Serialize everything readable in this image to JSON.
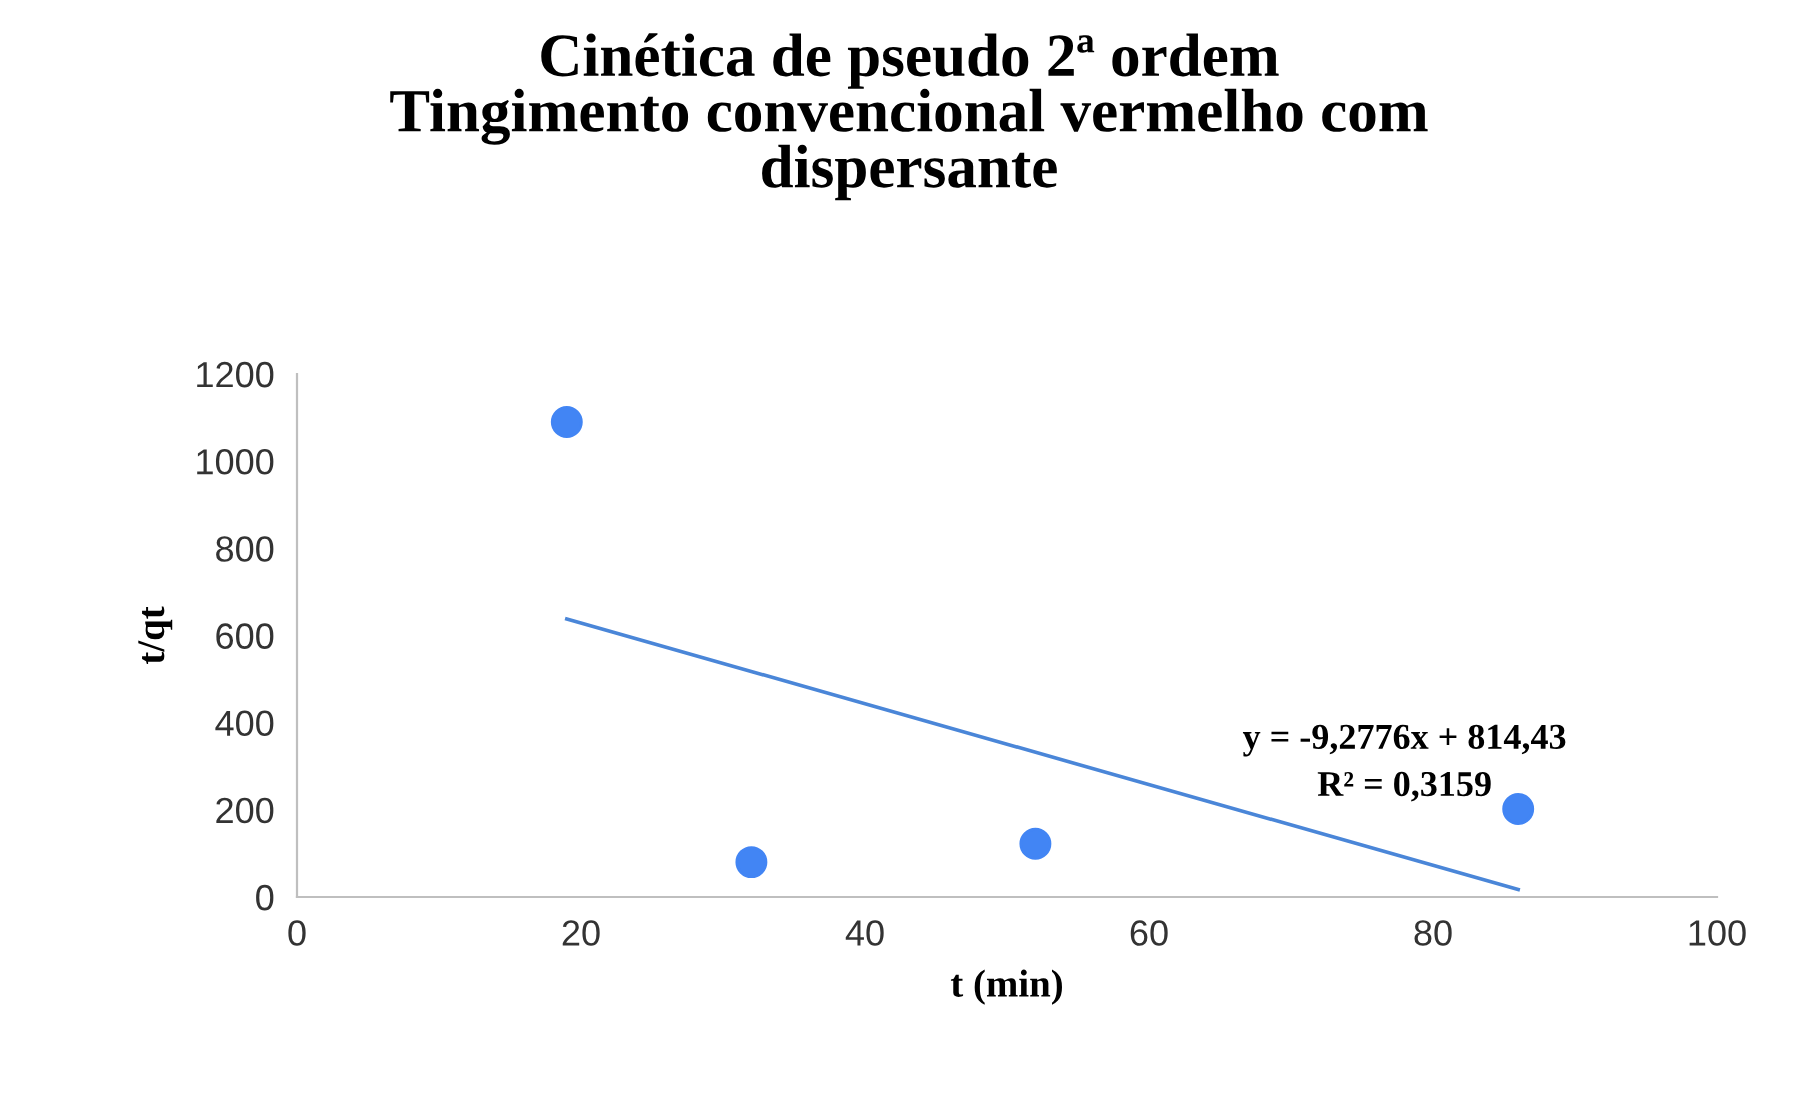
{
  "chart_data": {
    "type": "scatter",
    "title": "Cinética de pseudo 2ª ordem\nTingimento convencional vermelho com\ndispersante",
    "xlabel": "t (min)",
    "ylabel": "t/qt",
    "series": [
      {
        "color": "#4285f4",
        "x": [
          19,
          32,
          52,
          86
        ],
        "values": [
          1090,
          80,
          122,
          202
        ]
      },
      {
        "type": "line",
        "marker": "none",
        "color": "#4a86d8",
        "x": [
          19,
          86
        ],
        "values": [
          638,
          17
        ]
      }
    ],
    "annotations": [
      "y = -9,2776x + 814,43",
      "R² = 0,3159"
    ],
    "xlim": [
      0,
      100
    ],
    "xticks": [
      0,
      20,
      40,
      60,
      80,
      100
    ],
    "ylim": [
      0,
      1200
    ],
    "yticks": [
      0,
      200,
      400,
      600,
      800,
      1000,
      1200
    ],
    "grid": false,
    "legend": false,
    "marker": "circle"
  }
}
